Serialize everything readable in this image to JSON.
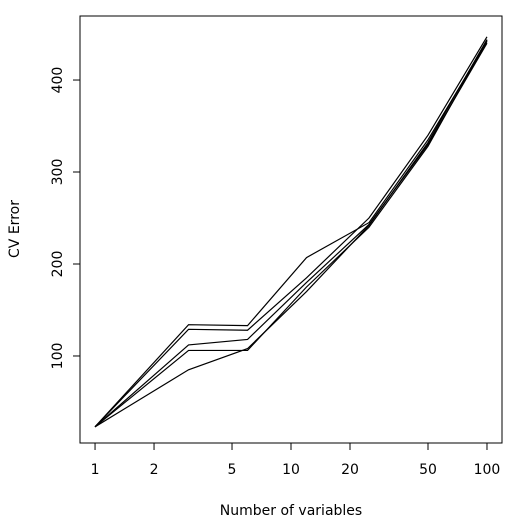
{
  "chart_data": {
    "type": "line",
    "x_label": "Number of variables",
    "y_label": "CV Error",
    "x": [
      1,
      3,
      6,
      12,
      25,
      50,
      100
    ],
    "series": [
      {
        "color": "#000000",
        "values": [
          23,
          134,
          133,
          207,
          245,
          335,
          442
        ]
      },
      {
        "color": "#000000",
        "values": [
          23,
          129,
          128,
          185,
          250,
          340,
          447
        ]
      },
      {
        "color": "#000000",
        "values": [
          23,
          112,
          118,
          180,
          243,
          330,
          440
        ]
      },
      {
        "color": "#000000",
        "values": [
          23,
          106,
          106,
          175,
          240,
          328,
          443
        ]
      },
      {
        "color": "#000000",
        "values": [
          23,
          85,
          108,
          170,
          242,
          332,
          444
        ]
      }
    ],
    "xscale": "log",
    "xlim": [
      0.838,
      119.3
    ],
    "ylim": [
      5.4,
      469.6
    ],
    "xticks": [
      1,
      2,
      5,
      10,
      20,
      50,
      100
    ],
    "yticks": [
      100,
      200,
      300,
      400
    ]
  }
}
